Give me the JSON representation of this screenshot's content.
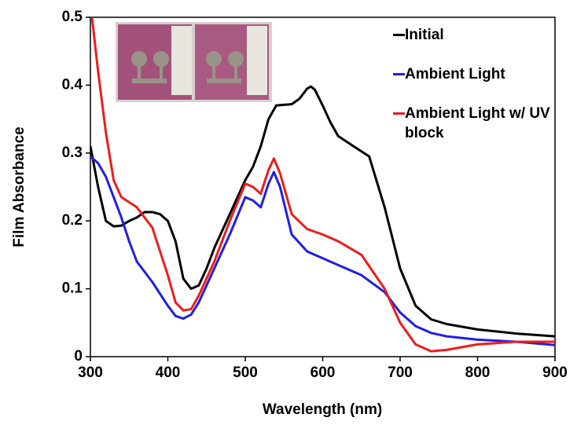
{
  "chart_data": {
    "type": "line",
    "x_label": "Wavelength (nm)",
    "y_label": "Film Absorbance",
    "xlim": [
      300,
      900
    ],
    "xticks": [
      300,
      400,
      500,
      600,
      700,
      800,
      900
    ],
    "ylim": [
      0,
      0.5
    ],
    "yticks": [
      0,
      0.1,
      0.2,
      0.3,
      0.4,
      0.5
    ],
    "series": [
      {
        "name": "Initial",
        "color": "#000000",
        "x": [
          300,
          310,
          320,
          330,
          340,
          350,
          360,
          370,
          380,
          390,
          400,
          410,
          420,
          430,
          440,
          450,
          460,
          480,
          500,
          510,
          520,
          530,
          540,
          560,
          570,
          580,
          585,
          590,
          600,
          610,
          620,
          640,
          660,
          680,
          700,
          720,
          740,
          760,
          800,
          850,
          900
        ],
        "values": [
          0.31,
          0.25,
          0.2,
          0.192,
          0.193,
          0.2,
          0.205,
          0.213,
          0.213,
          0.21,
          0.2,
          0.17,
          0.115,
          0.1,
          0.105,
          0.13,
          0.16,
          0.21,
          0.26,
          0.28,
          0.31,
          0.35,
          0.37,
          0.372,
          0.38,
          0.395,
          0.398,
          0.393,
          0.37,
          0.345,
          0.325,
          0.31,
          0.295,
          0.22,
          0.13,
          0.075,
          0.055,
          0.048,
          0.04,
          0.034,
          0.03
        ]
      },
      {
        "name": "Ambient Light",
        "color": "#1f1fe6",
        "x": [
          300,
          310,
          320,
          330,
          340,
          350,
          360,
          380,
          400,
          410,
          420,
          430,
          440,
          460,
          480,
          500,
          510,
          520,
          530,
          537,
          545,
          560,
          580,
          600,
          620,
          650,
          680,
          700,
          720,
          740,
          760,
          800,
          850,
          900
        ],
        "values": [
          0.295,
          0.285,
          0.265,
          0.235,
          0.205,
          0.17,
          0.14,
          0.11,
          0.075,
          0.06,
          0.056,
          0.062,
          0.08,
          0.13,
          0.18,
          0.235,
          0.23,
          0.22,
          0.255,
          0.272,
          0.25,
          0.18,
          0.155,
          0.145,
          0.135,
          0.12,
          0.095,
          0.065,
          0.045,
          0.035,
          0.03,
          0.025,
          0.022,
          0.017
        ]
      },
      {
        "name": "Ambient Light w/ UV block",
        "color": "#ee1c1c",
        "x": [
          302,
          310,
          320,
          330,
          340,
          360,
          380,
          400,
          410,
          420,
          430,
          440,
          460,
          480,
          500,
          510,
          520,
          530,
          537,
          545,
          560,
          580,
          600,
          620,
          650,
          680,
          700,
          720,
          740,
          760,
          800,
          850,
          900
        ],
        "values": [
          0.5,
          0.42,
          0.33,
          0.26,
          0.235,
          0.22,
          0.19,
          0.12,
          0.08,
          0.068,
          0.07,
          0.09,
          0.14,
          0.2,
          0.255,
          0.25,
          0.24,
          0.275,
          0.292,
          0.27,
          0.21,
          0.188,
          0.18,
          0.17,
          0.15,
          0.1,
          0.05,
          0.018,
          0.008,
          0.01,
          0.018,
          0.022,
          0.022
        ]
      }
    ]
  }
}
